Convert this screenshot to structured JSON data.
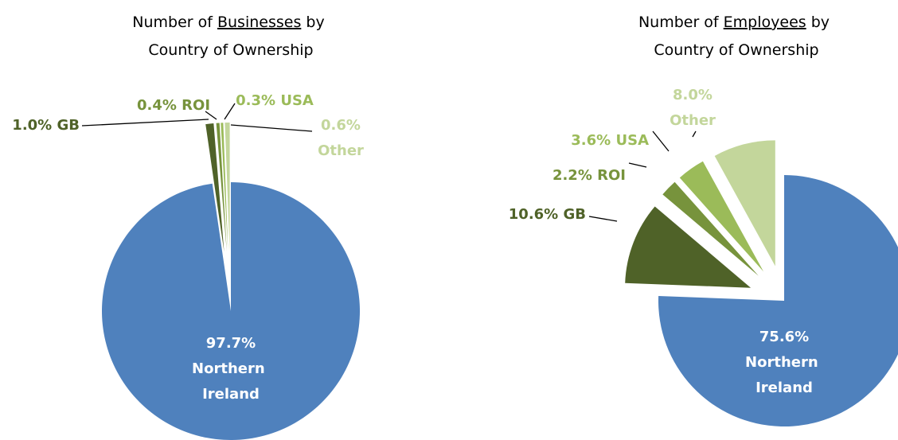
{
  "chart_data": [
    {
      "type": "pie",
      "title": "Number of Businesses by Country of Ownership",
      "underline": "Businesses",
      "categories": [
        "Northern Ireland",
        "GB",
        "ROI",
        "USA",
        "Other"
      ],
      "values": [
        97.7,
        1.0,
        0.4,
        0.3,
        0.6
      ],
      "value_labels": [
        "97.7%",
        "1.0%",
        "0.4%",
        "0.3%",
        "0.6%"
      ],
      "colors": [
        "#4f81bd",
        "#4f6228",
        "#77933c",
        "#9bbb59",
        "#c3d69b"
      ]
    },
    {
      "type": "pie",
      "title": "Number of Employees by Country of Ownership",
      "underline": "Employees",
      "categories": [
        "Northern Ireland",
        "GB",
        "ROI",
        "USA",
        "Other"
      ],
      "values": [
        75.6,
        10.6,
        2.2,
        3.6,
        8.0
      ],
      "value_labels": [
        "75.6%",
        "10.6%",
        "2.2%",
        "3.6%",
        "8.0%"
      ],
      "colors": [
        "#4f81bd",
        "#4f6228",
        "#77933c",
        "#9bbb59",
        "#c3d69b"
      ]
    }
  ]
}
